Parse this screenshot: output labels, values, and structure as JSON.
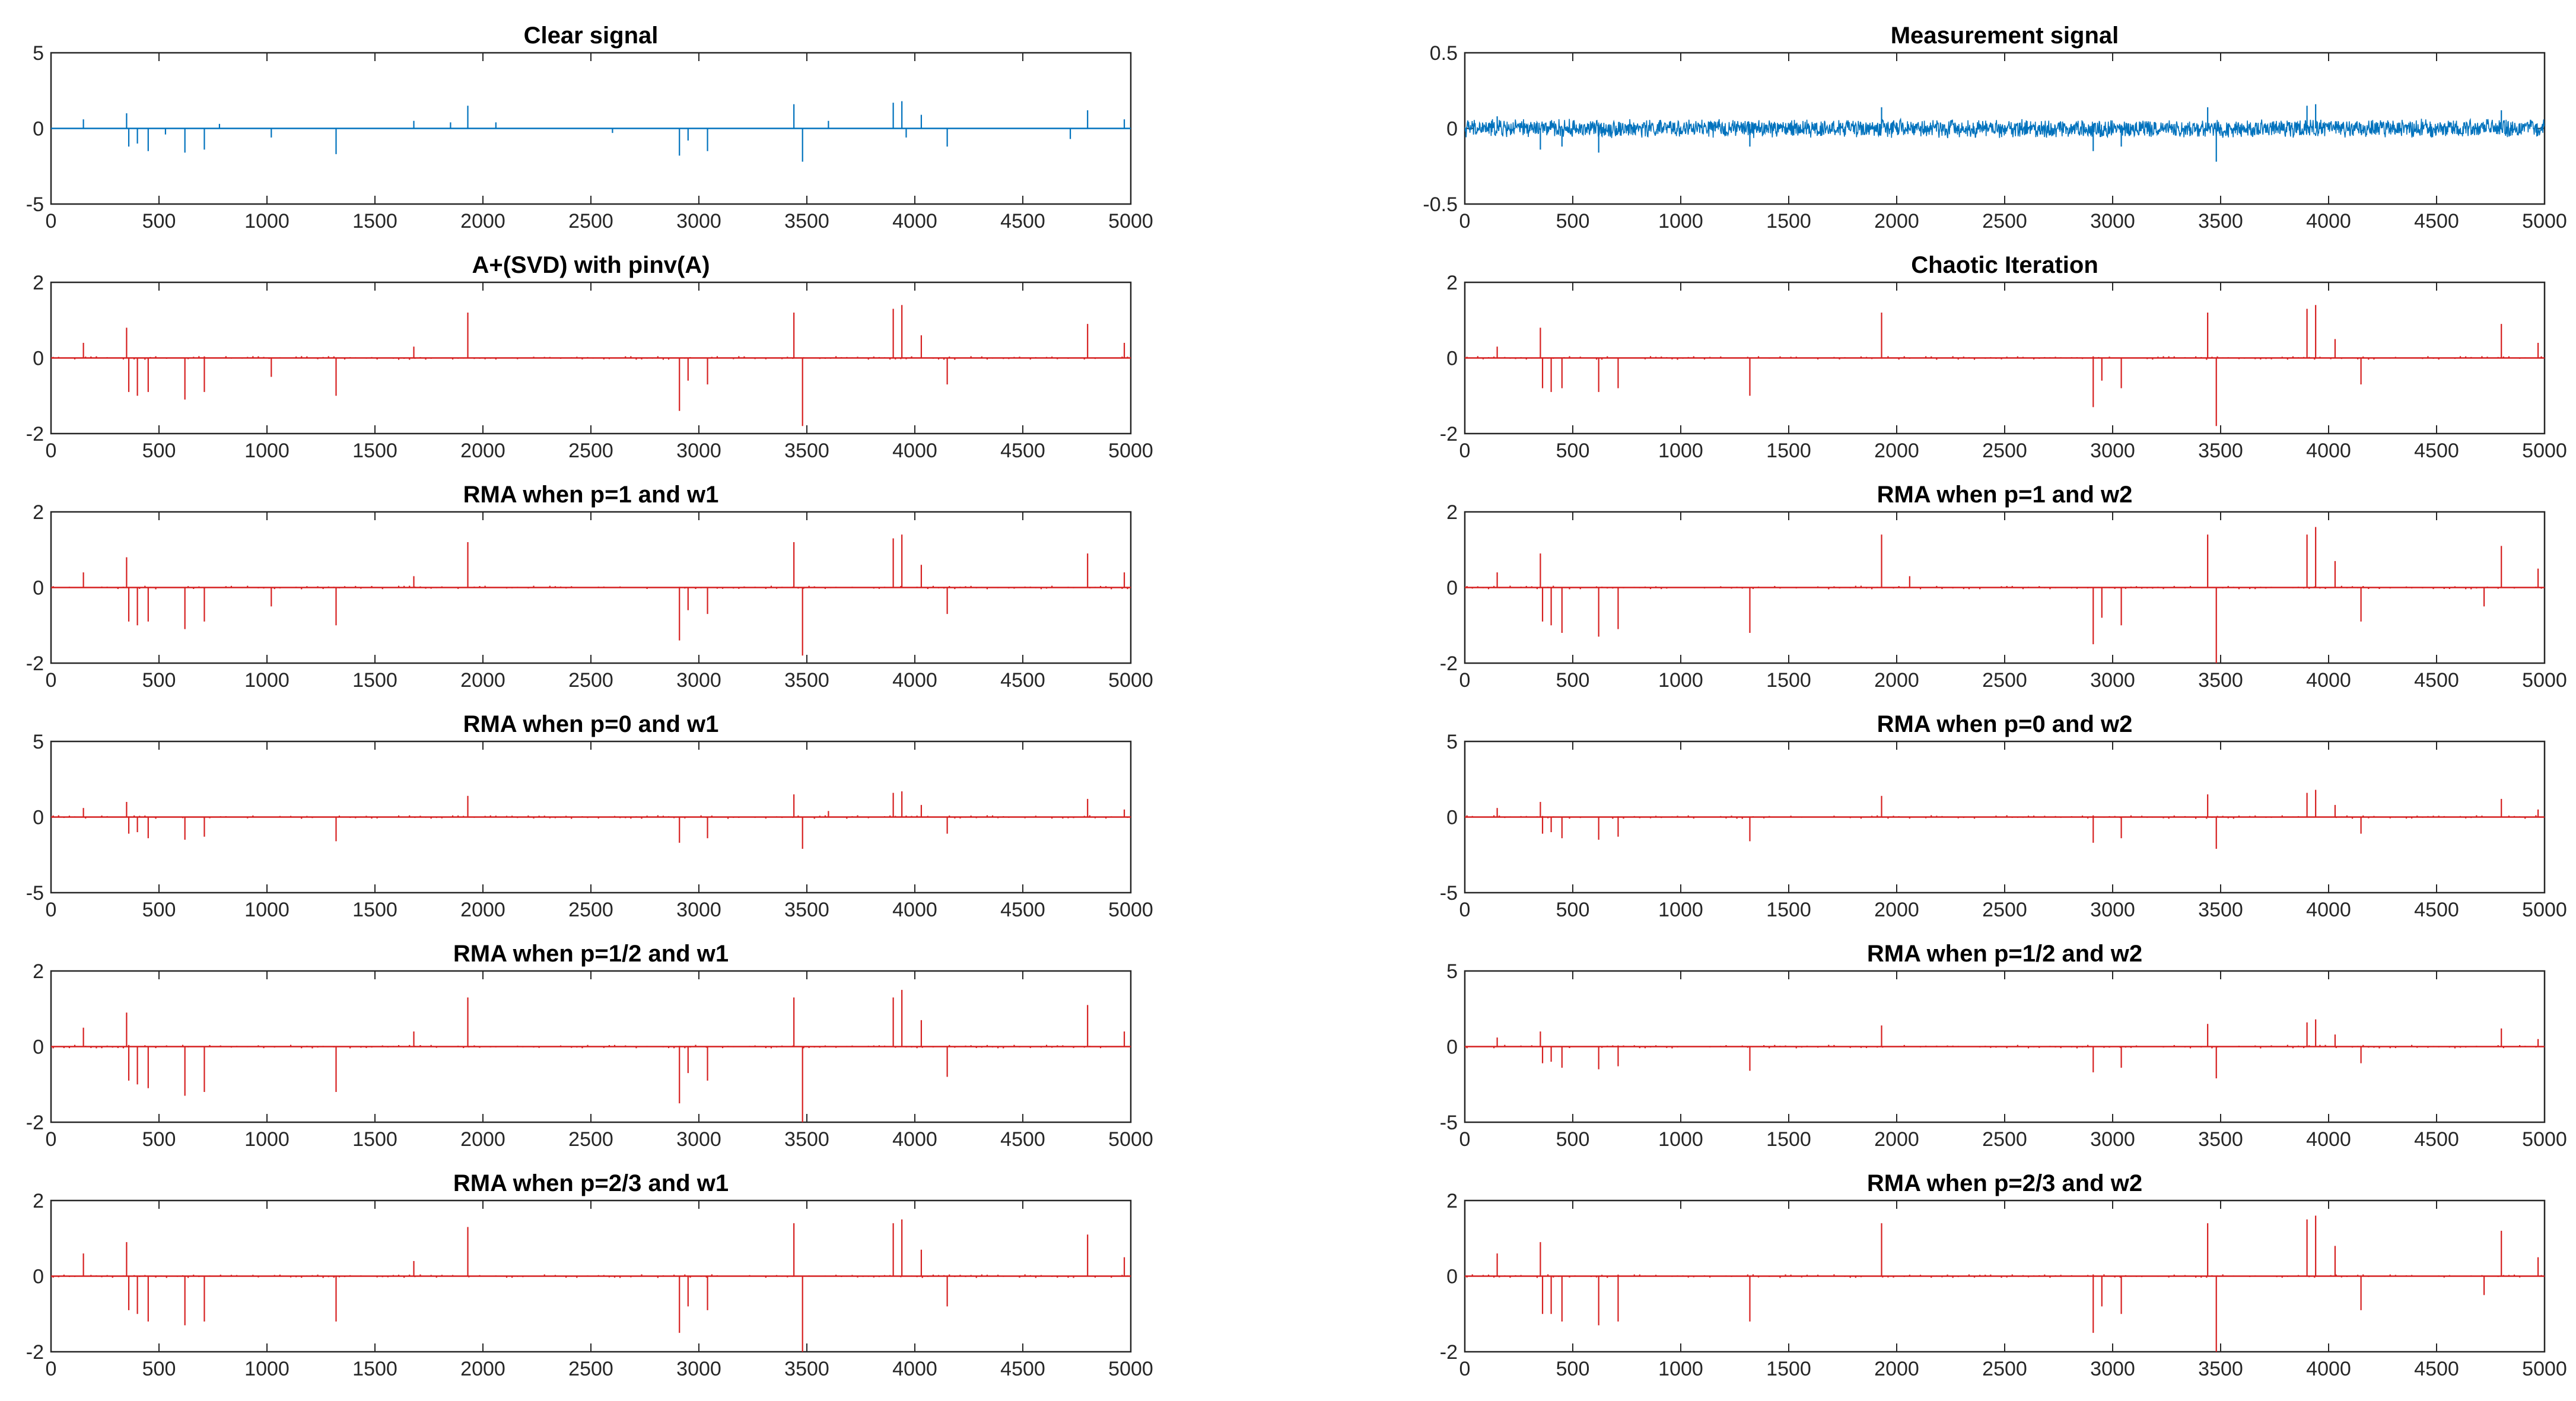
{
  "figure": {
    "colors": {
      "blue": "#0072BD",
      "red": "#D62020",
      "axis": "#262626"
    }
  },
  "chart_data": [
    {
      "type": "line",
      "color": "blue",
      "mode": "stem",
      "title": "Clear signal",
      "xlim": [
        0,
        5000
      ],
      "ylim": [
        -5,
        5
      ],
      "xticks": [
        "0",
        "500",
        "1000",
        "1500",
        "2000",
        "2500",
        "3000",
        "3500",
        "4000",
        "4500",
        "5000"
      ],
      "yticks": [
        "5",
        "0",
        "-5"
      ],
      "spikes": [
        [
          150,
          0.6
        ],
        [
          350,
          1.0
        ],
        [
          360,
          -1.2
        ],
        [
          400,
          -1.0
        ],
        [
          450,
          -1.5
        ],
        [
          530,
          -0.4
        ],
        [
          620,
          -1.6
        ],
        [
          710,
          -1.4
        ],
        [
          780,
          0.3
        ],
        [
          1020,
          -0.6
        ],
        [
          1320,
          -1.7
        ],
        [
          1680,
          0.5
        ],
        [
          1850,
          0.4
        ],
        [
          1930,
          1.5
        ],
        [
          2060,
          0.4
        ],
        [
          2600,
          -0.3
        ],
        [
          2910,
          -1.8
        ],
        [
          2950,
          -0.8
        ],
        [
          3040,
          -1.5
        ],
        [
          3440,
          1.6
        ],
        [
          3480,
          -2.2
        ],
        [
          3600,
          0.5
        ],
        [
          3900,
          1.7
        ],
        [
          3940,
          1.8
        ],
        [
          3960,
          -0.6
        ],
        [
          4030,
          0.9
        ],
        [
          4150,
          -1.2
        ],
        [
          4720,
          -0.7
        ],
        [
          4800,
          1.2
        ],
        [
          4970,
          0.6
        ]
      ]
    },
    {
      "type": "line",
      "color": "blue",
      "mode": "noise",
      "title": "Measurement signal",
      "xlim": [
        0,
        5000
      ],
      "ylim": [
        -0.5,
        0.5
      ],
      "xticks": [
        "0",
        "500",
        "1000",
        "1500",
        "2000",
        "2500",
        "3000",
        "3500",
        "4000",
        "4500",
        "5000"
      ],
      "yticks": [
        "0.5",
        "0",
        "-0.5"
      ],
      "noise_amplitude": 0.05,
      "spikes": [
        [
          150,
          0.08
        ],
        [
          350,
          -0.14
        ],
        [
          450,
          -0.12
        ],
        [
          620,
          -0.16
        ],
        [
          1320,
          -0.12
        ],
        [
          1930,
          0.14
        ],
        [
          2910,
          -0.15
        ],
        [
          3040,
          -0.12
        ],
        [
          3440,
          0.14
        ],
        [
          3480,
          -0.22
        ],
        [
          3900,
          0.15
        ],
        [
          3940,
          0.16
        ],
        [
          4800,
          0.12
        ]
      ]
    },
    {
      "type": "line",
      "color": "red",
      "mode": "stem",
      "title": "A+(SVD) with pinv(A)",
      "xlim": [
        0,
        5000
      ],
      "ylim": [
        -2,
        2
      ],
      "xticks": [
        "0",
        "500",
        "1000",
        "1500",
        "2000",
        "2500",
        "3000",
        "3500",
        "4000",
        "4500",
        "5000"
      ],
      "yticks": [
        "2",
        "0",
        "-2"
      ],
      "spikes": [
        [
          150,
          0.4
        ],
        [
          350,
          0.8
        ],
        [
          360,
          -0.9
        ],
        [
          400,
          -1.0
        ],
        [
          450,
          -0.9
        ],
        [
          620,
          -1.1
        ],
        [
          710,
          -0.9
        ],
        [
          1020,
          -0.5
        ],
        [
          1320,
          -1.0
        ],
        [
          1680,
          0.3
        ],
        [
          1930,
          1.2
        ],
        [
          2910,
          -1.4
        ],
        [
          2950,
          -0.6
        ],
        [
          3040,
          -0.7
        ],
        [
          3440,
          1.2
        ],
        [
          3480,
          -1.8
        ],
        [
          3900,
          1.3
        ],
        [
          3940,
          1.4
        ],
        [
          4030,
          0.6
        ],
        [
          4150,
          -0.7
        ],
        [
          4800,
          0.9
        ],
        [
          4970,
          0.4
        ]
      ]
    },
    {
      "type": "line",
      "color": "red",
      "mode": "stem",
      "title": "Chaotic Iteration",
      "xlim": [
        0,
        5000
      ],
      "ylim": [
        -2,
        2
      ],
      "xticks": [
        "0",
        "500",
        "1000",
        "1500",
        "2000",
        "2500",
        "3000",
        "3500",
        "4000",
        "4500",
        "5000"
      ],
      "yticks": [
        "2",
        "0",
        "-2"
      ],
      "spikes": [
        [
          150,
          0.3
        ],
        [
          350,
          0.8
        ],
        [
          360,
          -0.8
        ],
        [
          400,
          -0.9
        ],
        [
          450,
          -0.8
        ],
        [
          620,
          -0.9
        ],
        [
          710,
          -0.8
        ],
        [
          1320,
          -1.0
        ],
        [
          1930,
          1.2
        ],
        [
          2910,
          -1.3
        ],
        [
          2950,
          -0.6
        ],
        [
          3040,
          -0.8
        ],
        [
          3440,
          1.2
        ],
        [
          3480,
          -1.8
        ],
        [
          3900,
          1.3
        ],
        [
          3940,
          1.4
        ],
        [
          4030,
          0.5
        ],
        [
          4150,
          -0.7
        ],
        [
          4800,
          0.9
        ],
        [
          4970,
          0.4
        ]
      ]
    },
    {
      "type": "line",
      "color": "red",
      "mode": "stem",
      "title": "RMA when p=1 and w1",
      "xlim": [
        0,
        5000
      ],
      "ylim": [
        -2,
        2
      ],
      "xticks": [
        "0",
        "500",
        "1000",
        "1500",
        "2000",
        "2500",
        "3000",
        "3500",
        "4000",
        "4500",
        "5000"
      ],
      "yticks": [
        "2",
        "0",
        "-2"
      ],
      "spikes": [
        [
          150,
          0.4
        ],
        [
          350,
          0.8
        ],
        [
          360,
          -0.9
        ],
        [
          400,
          -1.0
        ],
        [
          450,
          -0.9
        ],
        [
          620,
          -1.1
        ],
        [
          710,
          -0.9
        ],
        [
          1020,
          -0.5
        ],
        [
          1320,
          -1.0
        ],
        [
          1680,
          0.3
        ],
        [
          1930,
          1.2
        ],
        [
          2910,
          -1.4
        ],
        [
          2950,
          -0.6
        ],
        [
          3040,
          -0.7
        ],
        [
          3440,
          1.2
        ],
        [
          3480,
          -1.8
        ],
        [
          3900,
          1.3
        ],
        [
          3940,
          1.4
        ],
        [
          4030,
          0.6
        ],
        [
          4150,
          -0.7
        ],
        [
          4800,
          0.9
        ],
        [
          4970,
          0.4
        ]
      ]
    },
    {
      "type": "line",
      "color": "red",
      "mode": "stem",
      "title": "RMA when p=1 and w2",
      "xlim": [
        0,
        5000
      ],
      "ylim": [
        -2,
        2
      ],
      "xticks": [
        "0",
        "500",
        "1000",
        "1500",
        "2000",
        "2500",
        "3000",
        "3500",
        "4000",
        "4500",
        "5000"
      ],
      "yticks": [
        "2",
        "0",
        "-2"
      ],
      "spikes": [
        [
          150,
          0.4
        ],
        [
          350,
          0.9
        ],
        [
          360,
          -0.9
        ],
        [
          400,
          -1.0
        ],
        [
          450,
          -1.2
        ],
        [
          620,
          -1.3
        ],
        [
          710,
          -1.1
        ],
        [
          1320,
          -1.2
        ],
        [
          1930,
          1.4
        ],
        [
          2060,
          0.3
        ],
        [
          2910,
          -1.5
        ],
        [
          2950,
          -0.8
        ],
        [
          3040,
          -1.0
        ],
        [
          3440,
          1.4
        ],
        [
          3480,
          -2.0
        ],
        [
          3900,
          1.4
        ],
        [
          3940,
          1.6
        ],
        [
          4030,
          0.7
        ],
        [
          4150,
          -0.9
        ],
        [
          4720,
          -0.5
        ],
        [
          4800,
          1.1
        ],
        [
          4970,
          0.5
        ]
      ]
    },
    {
      "type": "line",
      "color": "red",
      "mode": "stem",
      "title": "RMA when p=0 and w1",
      "xlim": [
        0,
        5000
      ],
      "ylim": [
        -5,
        5
      ],
      "xticks": [
        "0",
        "500",
        "1000",
        "1500",
        "2000",
        "2500",
        "3000",
        "3500",
        "4000",
        "4500",
        "5000"
      ],
      "yticks": [
        "5",
        "0",
        "-5"
      ],
      "spikes": [
        [
          150,
          0.6
        ],
        [
          350,
          1.0
        ],
        [
          360,
          -1.1
        ],
        [
          400,
          -1.0
        ],
        [
          450,
          -1.4
        ],
        [
          620,
          -1.5
        ],
        [
          710,
          -1.3
        ],
        [
          1320,
          -1.6
        ],
        [
          1930,
          1.4
        ],
        [
          2910,
          -1.7
        ],
        [
          3040,
          -1.4
        ],
        [
          3440,
          1.5
        ],
        [
          3480,
          -2.1
        ],
        [
          3600,
          0.4
        ],
        [
          3900,
          1.6
        ],
        [
          3940,
          1.7
        ],
        [
          4030,
          0.8
        ],
        [
          4150,
          -1.1
        ],
        [
          4800,
          1.2
        ],
        [
          4970,
          0.5
        ]
      ]
    },
    {
      "type": "line",
      "color": "red",
      "mode": "stem",
      "title": "RMA when p=0 and w2",
      "xlim": [
        0,
        5000
      ],
      "ylim": [
        -5,
        5
      ],
      "xticks": [
        "0",
        "500",
        "1000",
        "1500",
        "2000",
        "2500",
        "3000",
        "3500",
        "4000",
        "4500",
        "5000"
      ],
      "yticks": [
        "5",
        "0",
        "-5"
      ],
      "spikes": [
        [
          150,
          0.6
        ],
        [
          350,
          1.0
        ],
        [
          360,
          -1.1
        ],
        [
          400,
          -1.0
        ],
        [
          450,
          -1.4
        ],
        [
          620,
          -1.5
        ],
        [
          710,
          -1.3
        ],
        [
          1320,
          -1.6
        ],
        [
          1930,
          1.4
        ],
        [
          2910,
          -1.7
        ],
        [
          3040,
          -1.4
        ],
        [
          3440,
          1.5
        ],
        [
          3480,
          -2.1
        ],
        [
          3900,
          1.6
        ],
        [
          3940,
          1.8
        ],
        [
          4030,
          0.8
        ],
        [
          4150,
          -1.1
        ],
        [
          4800,
          1.2
        ],
        [
          4970,
          0.5
        ]
      ]
    },
    {
      "type": "line",
      "color": "red",
      "mode": "stem",
      "title": "RMA when p=1/2 and w1",
      "xlim": [
        0,
        5000
      ],
      "ylim": [
        -2,
        2
      ],
      "xticks": [
        "0",
        "500",
        "1000",
        "1500",
        "2000",
        "2500",
        "3000",
        "3500",
        "4000",
        "4500",
        "5000"
      ],
      "yticks": [
        "2",
        "0",
        "-2"
      ],
      "spikes": [
        [
          150,
          0.5
        ],
        [
          350,
          0.9
        ],
        [
          360,
          -0.9
        ],
        [
          400,
          -1.0
        ],
        [
          450,
          -1.1
        ],
        [
          620,
          -1.3
        ],
        [
          710,
          -1.2
        ],
        [
          1320,
          -1.2
        ],
        [
          1680,
          0.4
        ],
        [
          1930,
          1.3
        ],
        [
          2910,
          -1.5
        ],
        [
          2950,
          -0.7
        ],
        [
          3040,
          -0.9
        ],
        [
          3440,
          1.3
        ],
        [
          3480,
          -2.0
        ],
        [
          3900,
          1.3
        ],
        [
          3940,
          1.5
        ],
        [
          4030,
          0.7
        ],
        [
          4150,
          -0.8
        ],
        [
          4800,
          1.1
        ],
        [
          4970,
          0.4
        ]
      ]
    },
    {
      "type": "line",
      "color": "red",
      "mode": "stem",
      "title": "RMA when p=1/2 and w2",
      "xlim": [
        0,
        5000
      ],
      "ylim": [
        -5,
        5
      ],
      "xticks": [
        "0",
        "500",
        "1000",
        "1500",
        "2000",
        "2500",
        "3000",
        "3500",
        "4000",
        "4500",
        "5000"
      ],
      "yticks": [
        "5",
        "0",
        "-5"
      ],
      "spikes": [
        [
          150,
          0.6
        ],
        [
          350,
          1.0
        ],
        [
          360,
          -1.1
        ],
        [
          400,
          -1.0
        ],
        [
          450,
          -1.4
        ],
        [
          620,
          -1.5
        ],
        [
          710,
          -1.3
        ],
        [
          1320,
          -1.6
        ],
        [
          1930,
          1.4
        ],
        [
          2910,
          -1.7
        ],
        [
          3040,
          -1.4
        ],
        [
          3440,
          1.5
        ],
        [
          3480,
          -2.1
        ],
        [
          3900,
          1.6
        ],
        [
          3940,
          1.8
        ],
        [
          4030,
          0.8
        ],
        [
          4150,
          -1.1
        ],
        [
          4800,
          1.2
        ],
        [
          4970,
          0.5
        ]
      ]
    },
    {
      "type": "line",
      "color": "red",
      "mode": "stem",
      "title": "RMA when p=2/3 and w1",
      "xlim": [
        0,
        5000
      ],
      "ylim": [
        -2,
        2
      ],
      "xticks": [
        "0",
        "500",
        "1000",
        "1500",
        "2000",
        "2500",
        "3000",
        "3500",
        "4000",
        "4500",
        "5000"
      ],
      "yticks": [
        "2",
        "0",
        "-2"
      ],
      "spikes": [
        [
          150,
          0.6
        ],
        [
          350,
          0.9
        ],
        [
          360,
          -0.9
        ],
        [
          400,
          -1.0
        ],
        [
          450,
          -1.2
        ],
        [
          620,
          -1.3
        ],
        [
          710,
          -1.2
        ],
        [
          1320,
          -1.2
        ],
        [
          1680,
          0.4
        ],
        [
          1930,
          1.3
        ],
        [
          2910,
          -1.5
        ],
        [
          2950,
          -0.8
        ],
        [
          3040,
          -0.9
        ],
        [
          3440,
          1.4
        ],
        [
          3480,
          -2.0
        ],
        [
          3900,
          1.4
        ],
        [
          3940,
          1.5
        ],
        [
          4030,
          0.7
        ],
        [
          4150,
          -0.8
        ],
        [
          4800,
          1.1
        ],
        [
          4970,
          0.5
        ]
      ]
    },
    {
      "type": "line",
      "color": "red",
      "mode": "stem",
      "title": "RMA when p=2/3 and w2",
      "xlim": [
        0,
        5000
      ],
      "ylim": [
        -2,
        2
      ],
      "xticks": [
        "0",
        "500",
        "1000",
        "1500",
        "2000",
        "2500",
        "3000",
        "3500",
        "4000",
        "4500",
        "5000"
      ],
      "yticks": [
        "2",
        "0",
        "-2"
      ],
      "spikes": [
        [
          150,
          0.6
        ],
        [
          350,
          0.9
        ],
        [
          360,
          -1.0
        ],
        [
          400,
          -1.0
        ],
        [
          450,
          -1.2
        ],
        [
          620,
          -1.3
        ],
        [
          710,
          -1.2
        ],
        [
          1320,
          -1.2
        ],
        [
          1930,
          1.4
        ],
        [
          2910,
          -1.5
        ],
        [
          2950,
          -0.8
        ],
        [
          3040,
          -1.0
        ],
        [
          3440,
          1.4
        ],
        [
          3480,
          -2.0
        ],
        [
          3900,
          1.5
        ],
        [
          3940,
          1.6
        ],
        [
          4030,
          0.8
        ],
        [
          4150,
          -0.9
        ],
        [
          4720,
          -0.5
        ],
        [
          4800,
          1.2
        ],
        [
          4970,
          0.5
        ]
      ]
    }
  ]
}
